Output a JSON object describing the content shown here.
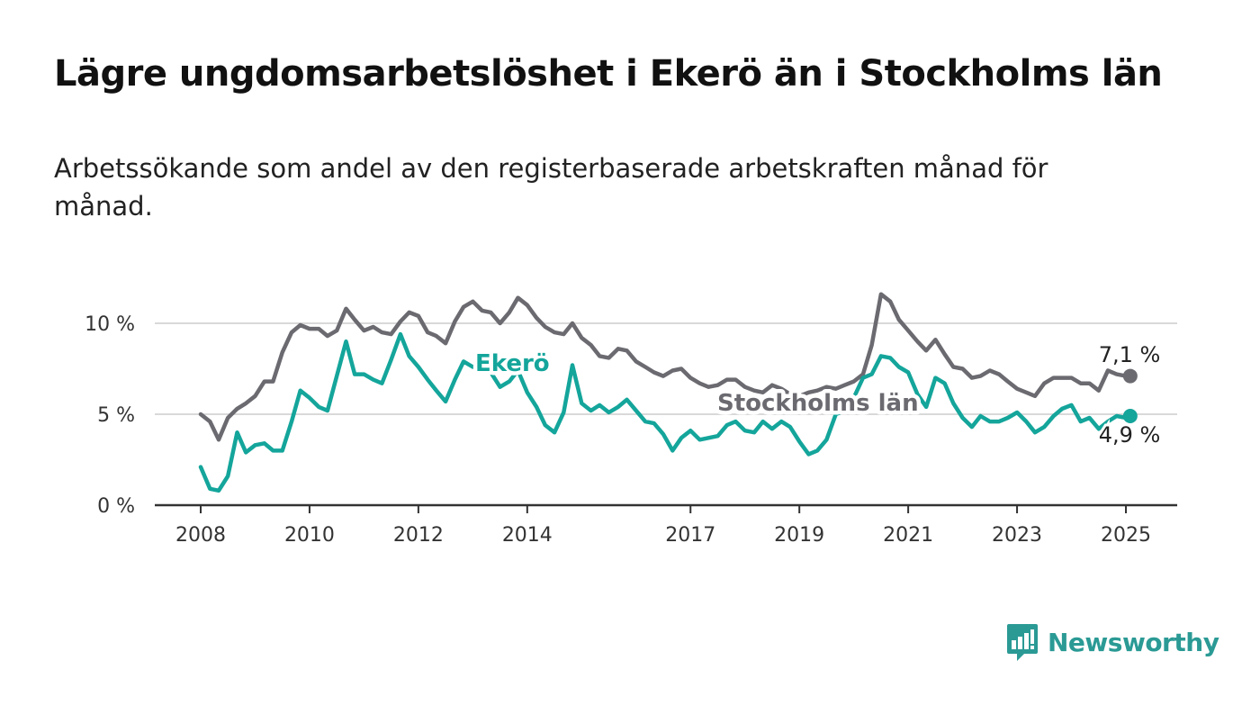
{
  "title": "Lägre ungdomsarbetslöshet i Ekerö än i Stockholms län",
  "subtitle": "Arbetssökande som andel av den registerbaserade arbetskraften månad för månad.",
  "brand": {
    "name": "Newsworthy",
    "color": "#2b9a95"
  },
  "chart_data": {
    "type": "line",
    "x_unit": "year",
    "xlim": [
      2007.5,
      2026.0
    ],
    "ylim": [
      0,
      12.5
    ],
    "y_ticks": [
      0,
      5,
      10
    ],
    "y_tick_labels": [
      "0 %",
      "5 %",
      "10 %"
    ],
    "x_ticks": [
      2008,
      2010,
      2012,
      2014,
      2017,
      2019,
      2021,
      2023,
      2025
    ],
    "x_tick_labels": [
      "2008",
      "2010",
      "2012",
      "2014",
      "2017",
      "2019",
      "2021",
      "2023",
      "2025"
    ],
    "grid": true,
    "series": [
      {
        "name": "Stockholms län",
        "color": "#6b6a70",
        "end_label": "7,1 %",
        "points": [
          [
            2008.0,
            5.0
          ],
          [
            2008.17,
            4.6
          ],
          [
            2008.33,
            3.6
          ],
          [
            2008.5,
            4.8
          ],
          [
            2008.67,
            5.3
          ],
          [
            2008.83,
            5.6
          ],
          [
            2009.0,
            6.0
          ],
          [
            2009.17,
            6.8
          ],
          [
            2009.33,
            6.8
          ],
          [
            2009.5,
            8.4
          ],
          [
            2009.67,
            9.5
          ],
          [
            2009.83,
            9.9
          ],
          [
            2010.0,
            9.7
          ],
          [
            2010.17,
            9.7
          ],
          [
            2010.33,
            9.3
          ],
          [
            2010.5,
            9.6
          ],
          [
            2010.67,
            10.8
          ],
          [
            2010.83,
            10.2
          ],
          [
            2011.0,
            9.6
          ],
          [
            2011.17,
            9.8
          ],
          [
            2011.33,
            9.5
          ],
          [
            2011.5,
            9.4
          ],
          [
            2011.67,
            10.1
          ],
          [
            2011.83,
            10.6
          ],
          [
            2012.0,
            10.4
          ],
          [
            2012.17,
            9.5
          ],
          [
            2012.33,
            9.3
          ],
          [
            2012.5,
            8.9
          ],
          [
            2012.67,
            10.1
          ],
          [
            2012.83,
            10.9
          ],
          [
            2013.0,
            11.2
          ],
          [
            2013.17,
            10.7
          ],
          [
            2013.33,
            10.6
          ],
          [
            2013.5,
            10.0
          ],
          [
            2013.67,
            10.6
          ],
          [
            2013.83,
            11.4
          ],
          [
            2014.0,
            11.0
          ],
          [
            2014.17,
            10.3
          ],
          [
            2014.33,
            9.8
          ],
          [
            2014.5,
            9.5
          ],
          [
            2014.67,
            9.4
          ],
          [
            2014.83,
            10.0
          ],
          [
            2015.0,
            9.2
          ],
          [
            2015.17,
            8.8
          ],
          [
            2015.33,
            8.2
          ],
          [
            2015.5,
            8.1
          ],
          [
            2015.67,
            8.6
          ],
          [
            2015.83,
            8.5
          ],
          [
            2016.0,
            7.9
          ],
          [
            2016.17,
            7.6
          ],
          [
            2016.33,
            7.3
          ],
          [
            2016.5,
            7.1
          ],
          [
            2016.67,
            7.4
          ],
          [
            2016.83,
            7.5
          ],
          [
            2017.0,
            7.0
          ],
          [
            2017.17,
            6.7
          ],
          [
            2017.33,
            6.5
          ],
          [
            2017.5,
            6.6
          ],
          [
            2017.67,
            6.9
          ],
          [
            2017.83,
            6.9
          ],
          [
            2018.0,
            6.5
          ],
          [
            2018.17,
            6.3
          ],
          [
            2018.33,
            6.2
          ],
          [
            2018.5,
            6.6
          ],
          [
            2018.67,
            6.4
          ],
          [
            2018.83,
            6.1
          ],
          [
            2019.0,
            6.0
          ],
          [
            2019.17,
            6.2
          ],
          [
            2019.33,
            6.3
          ],
          [
            2019.5,
            6.5
          ],
          [
            2019.67,
            6.4
          ],
          [
            2019.83,
            6.6
          ],
          [
            2020.0,
            6.8
          ],
          [
            2020.17,
            7.2
          ],
          [
            2020.33,
            8.8
          ],
          [
            2020.5,
            11.6
          ],
          [
            2020.67,
            11.2
          ],
          [
            2020.83,
            10.2
          ],
          [
            2021.0,
            9.6
          ],
          [
            2021.17,
            9.0
          ],
          [
            2021.33,
            8.5
          ],
          [
            2021.5,
            9.1
          ],
          [
            2021.67,
            8.3
          ],
          [
            2021.83,
            7.6
          ],
          [
            2022.0,
            7.5
          ],
          [
            2022.17,
            7.0
          ],
          [
            2022.33,
            7.1
          ],
          [
            2022.5,
            7.4
          ],
          [
            2022.67,
            7.2
          ],
          [
            2022.83,
            6.8
          ],
          [
            2023.0,
            6.4
          ],
          [
            2023.17,
            6.2
          ],
          [
            2023.33,
            6.0
          ],
          [
            2023.5,
            6.7
          ],
          [
            2023.67,
            7.0
          ],
          [
            2023.83,
            7.0
          ],
          [
            2024.0,
            7.0
          ],
          [
            2024.17,
            6.7
          ],
          [
            2024.33,
            6.7
          ],
          [
            2024.5,
            6.3
          ],
          [
            2024.67,
            7.4
          ],
          [
            2024.83,
            7.2
          ],
          [
            2025.0,
            7.1
          ],
          [
            2025.08,
            7.1
          ]
        ]
      },
      {
        "name": "Ekerö",
        "color": "#14a59b",
        "end_label": "4,9 %",
        "points": [
          [
            2008.0,
            2.1
          ],
          [
            2008.17,
            0.9
          ],
          [
            2008.33,
            0.8
          ],
          [
            2008.5,
            1.6
          ],
          [
            2008.67,
            4.0
          ],
          [
            2008.83,
            2.9
          ],
          [
            2009.0,
            3.3
          ],
          [
            2009.17,
            3.4
          ],
          [
            2009.33,
            3.0
          ],
          [
            2009.5,
            3.0
          ],
          [
            2009.67,
            4.6
          ],
          [
            2009.83,
            6.3
          ],
          [
            2010.0,
            5.9
          ],
          [
            2010.17,
            5.4
          ],
          [
            2010.33,
            5.2
          ],
          [
            2010.5,
            7.1
          ],
          [
            2010.67,
            9.0
          ],
          [
            2010.83,
            7.2
          ],
          [
            2011.0,
            7.2
          ],
          [
            2011.17,
            6.9
          ],
          [
            2011.33,
            6.7
          ],
          [
            2011.5,
            8.0
          ],
          [
            2011.67,
            9.4
          ],
          [
            2011.83,
            8.2
          ],
          [
            2012.0,
            7.6
          ],
          [
            2012.17,
            6.9
          ],
          [
            2012.33,
            6.3
          ],
          [
            2012.5,
            5.7
          ],
          [
            2012.67,
            6.9
          ],
          [
            2012.83,
            7.9
          ],
          [
            2013.0,
            7.6
          ],
          [
            2013.17,
            7.8
          ],
          [
            2013.33,
            7.3
          ],
          [
            2013.5,
            6.5
          ],
          [
            2013.67,
            6.8
          ],
          [
            2013.83,
            7.4
          ],
          [
            2014.0,
            6.2
          ],
          [
            2014.17,
            5.4
          ],
          [
            2014.33,
            4.4
          ],
          [
            2014.5,
            4.0
          ],
          [
            2014.67,
            5.1
          ],
          [
            2014.83,
            7.7
          ],
          [
            2015.0,
            5.6
          ],
          [
            2015.17,
            5.2
          ],
          [
            2015.33,
            5.5
          ],
          [
            2015.5,
            5.1
          ],
          [
            2015.67,
            5.4
          ],
          [
            2015.83,
            5.8
          ],
          [
            2016.0,
            5.2
          ],
          [
            2016.17,
            4.6
          ],
          [
            2016.33,
            4.5
          ],
          [
            2016.5,
            3.9
          ],
          [
            2016.67,
            3.0
          ],
          [
            2016.83,
            3.7
          ],
          [
            2017.0,
            4.1
          ],
          [
            2017.17,
            3.6
          ],
          [
            2017.33,
            3.7
          ],
          [
            2017.5,
            3.8
          ],
          [
            2017.67,
            4.4
          ],
          [
            2017.83,
            4.6
          ],
          [
            2018.0,
            4.1
          ],
          [
            2018.17,
            4.0
          ],
          [
            2018.33,
            4.6
          ],
          [
            2018.5,
            4.2
          ],
          [
            2018.67,
            4.6
          ],
          [
            2018.83,
            4.3
          ],
          [
            2019.0,
            3.5
          ],
          [
            2019.17,
            2.8
          ],
          [
            2019.33,
            3.0
          ],
          [
            2019.5,
            3.6
          ],
          [
            2019.67,
            5.0
          ],
          [
            2019.83,
            5.2
          ],
          [
            2020.0,
            5.9
          ],
          [
            2020.17,
            7.0
          ],
          [
            2020.33,
            7.2
          ],
          [
            2020.5,
            8.2
          ],
          [
            2020.67,
            8.1
          ],
          [
            2020.83,
            7.6
          ],
          [
            2021.0,
            7.3
          ],
          [
            2021.17,
            6.1
          ],
          [
            2021.33,
            5.4
          ],
          [
            2021.5,
            7.0
          ],
          [
            2021.67,
            6.7
          ],
          [
            2021.83,
            5.6
          ],
          [
            2022.0,
            4.8
          ],
          [
            2022.17,
            4.3
          ],
          [
            2022.33,
            4.9
          ],
          [
            2022.5,
            4.6
          ],
          [
            2022.67,
            4.6
          ],
          [
            2022.83,
            4.8
          ],
          [
            2023.0,
            5.1
          ],
          [
            2023.17,
            4.6
          ],
          [
            2023.33,
            4.0
          ],
          [
            2023.5,
            4.3
          ],
          [
            2023.67,
            4.9
          ],
          [
            2023.83,
            5.3
          ],
          [
            2024.0,
            5.5
          ],
          [
            2024.17,
            4.6
          ],
          [
            2024.33,
            4.8
          ],
          [
            2024.5,
            4.2
          ],
          [
            2024.67,
            4.6
          ],
          [
            2024.83,
            4.9
          ],
          [
            2025.0,
            4.8
          ],
          [
            2025.08,
            4.9
          ]
        ]
      }
    ]
  }
}
